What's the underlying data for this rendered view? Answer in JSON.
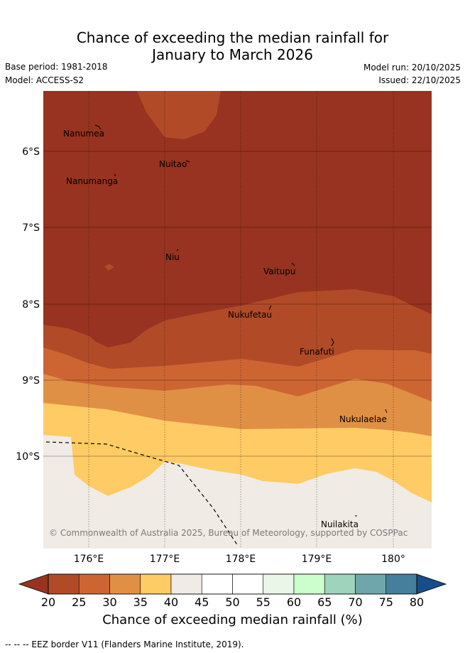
{
  "title": {
    "line1": "Chance of exceeding the median rainfall for",
    "line2": "January to March 2026"
  },
  "meta": {
    "base_period": "Base period: 1981-2018",
    "model": "Model: ACCESS-S2",
    "model_run": "Model run: 20/10/2025",
    "issued": "Issued: 22/10/2025"
  },
  "map": {
    "lat_labels": [
      "6°S",
      "7°S",
      "8°S",
      "9°S",
      "10°S"
    ],
    "lon_labels": [
      "176°E",
      "177°E",
      "178°E",
      "179°E",
      "180°"
    ],
    "places": [
      "Nanumea",
      "Nuitao",
      "Nanumanga",
      "Niu",
      "Vaitupu",
      "Nukufetau",
      "Funafuti",
      "Nukulaelae",
      "Nuilakita"
    ],
    "copyright": "© Commonwealth of Australia 2025, Bureau of Meteorology, supported by COSPPac",
    "zone_colors": {
      "lt20": "#973320",
      "c20_25": "#b14b27",
      "c25_30": "#cd6533",
      "c30_35": "#e09045",
      "c35_40": "#fecb64",
      "c40_45": "#f0ebe5"
    }
  },
  "colorbar": {
    "ticks": [
      "20",
      "25",
      "30",
      "35",
      "40",
      "45",
      "50",
      "55",
      "60",
      "65",
      "70",
      "75",
      "80"
    ],
    "colors": [
      "#b14b27",
      "#cd6533",
      "#e09045",
      "#fecb64",
      "#f0ebe5",
      "#ffffff",
      "#ffffff",
      "#eaf6e7",
      "#ccfdcc",
      "#9ed4bc",
      "#6fa6ab",
      "#467f9c"
    ],
    "low_color": "#973320",
    "high_color": "#174d8a",
    "label": "Chance of exceeding median rainfall (%)"
  },
  "footer": "-- -- -- EEZ border V11 (Flanders Marine Institute, 2019)."
}
